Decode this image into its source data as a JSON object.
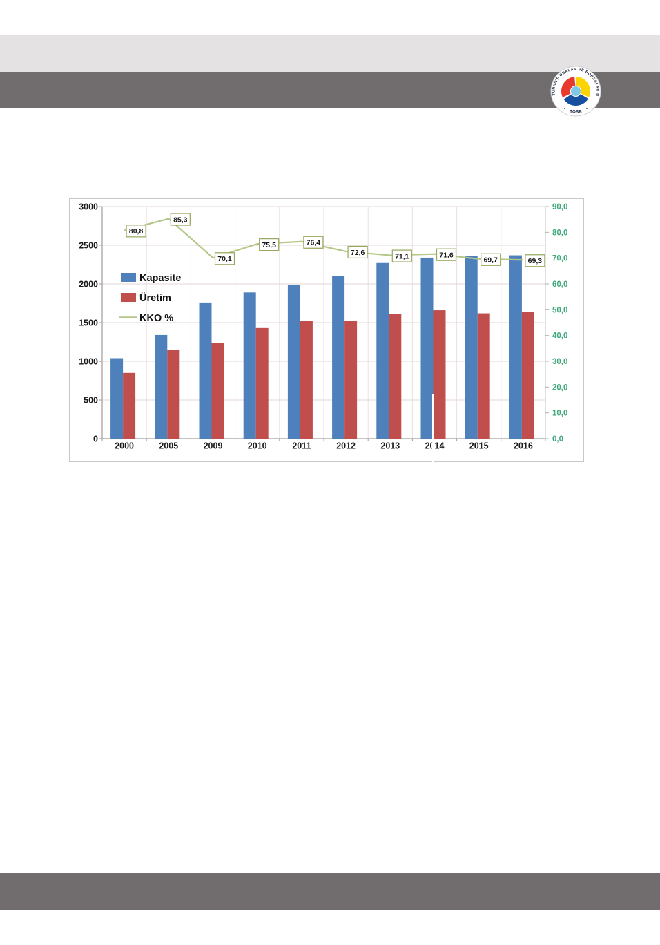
{
  "page": {
    "header": {
      "light_band_color": "#e4e2e3",
      "dark_band_color": "#716c6d"
    },
    "footer": {
      "band_color": "#716c6d"
    },
    "logo": {
      "ring_text": "TÜRKİYE ODALAR VE BORSALAR BİRLİĞİ",
      "name": "TOBB",
      "colors": {
        "red": "#e8392f",
        "yellow": "#fcd303",
        "blue": "#164f9e",
        "center": "#7ec8e8",
        "text": "#16233f"
      }
    }
  },
  "chart_data": {
    "type": "bar",
    "subtype": "bar+line combo, dual axis",
    "categories": [
      "2000",
      "2005",
      "2009",
      "2010",
      "2011",
      "2012",
      "2013",
      "2014",
      "2015",
      "2016"
    ],
    "series": [
      {
        "name": "Kapasite",
        "type": "bar",
        "axis": "left",
        "color": "#4e81bc",
        "values": [
          1040,
          1340,
          1760,
          1890,
          1990,
          2100,
          2270,
          2340,
          2360,
          2370
        ]
      },
      {
        "name": "Üretim",
        "type": "bar",
        "axis": "left",
        "color": "#bf4e4c",
        "values": [
          850,
          1150,
          1240,
          1430,
          1520,
          1520,
          1610,
          1660,
          1620,
          1640
        ]
      },
      {
        "name": "KKO %",
        "type": "line",
        "axis": "right",
        "color": "#b3c789",
        "values": [
          80.8,
          85.3,
          70.1,
          75.5,
          76.4,
          72.6,
          71.1,
          71.6,
          69.7,
          69.3
        ],
        "labels": [
          "80,8",
          "85,3",
          "70,1",
          "75,5",
          "76,4",
          "72,6",
          "71,1",
          "71,6",
          "69,7",
          "69,3"
        ]
      }
    ],
    "title": "",
    "xlabel": "",
    "ylabel": "",
    "left_axis": {
      "min": 0,
      "max": 3000,
      "step": 500,
      "ticks": [
        "0",
        "500",
        "1000",
        "1500",
        "2000",
        "2500",
        "3000"
      ],
      "color": "#1a1a1a"
    },
    "right_axis": {
      "min": 0,
      "max": 90,
      "step": 10,
      "ticks": [
        "0,0",
        "10,0",
        "20,0",
        "30,0",
        "40,0",
        "50,0",
        "60,0",
        "70,0",
        "80,0",
        "90,0"
      ],
      "color": "#3fa97b"
    },
    "legend_position": "inside-left",
    "grid": true,
    "label_box_border": "#94a75a"
  }
}
